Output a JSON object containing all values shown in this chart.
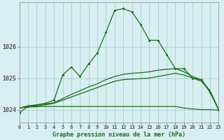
{
  "title": "Graphe pression niveau de la mer (hPa)",
  "background_color": "#d8eef0",
  "grid_color": "#b0d4d4",
  "line_color_main": "#1a6e1a",
  "xlim": [
    0,
    23
  ],
  "ylim": [
    1023.6,
    1027.4
  ],
  "yticks": [
    1024,
    1025,
    1026
  ],
  "xtick_labels": [
    "0",
    "1",
    "2",
    "3",
    "4",
    "5",
    "6",
    "7",
    "8",
    "9",
    "10",
    "11",
    "12",
    "13",
    "14",
    "15",
    "16",
    "17",
    "18",
    "19",
    "20",
    "21",
    "22",
    "23"
  ],
  "series_main": {
    "x": [
      0,
      1,
      2,
      3,
      4,
      5,
      6,
      7,
      8,
      9,
      10,
      11,
      12,
      13,
      14,
      15,
      16,
      17,
      18,
      19,
      20,
      21,
      22,
      23
    ],
    "y": [
      1023.9,
      1024.1,
      1024.15,
      1024.2,
      1024.3,
      1025.1,
      1025.35,
      1025.05,
      1025.45,
      1025.8,
      1026.45,
      1027.15,
      1027.2,
      1027.1,
      1026.7,
      1026.2,
      1026.2,
      1025.75,
      1025.3,
      1025.3,
      1025.0,
      1024.95,
      1024.55,
      1024.0
    ]
  },
  "series_flat": {
    "x": [
      0,
      1,
      2,
      3,
      4,
      5,
      6,
      7,
      8,
      9,
      10,
      11,
      12,
      13,
      14,
      15,
      16,
      17,
      18,
      19,
      20,
      21,
      22,
      23
    ],
    "y": [
      1024.05,
      1024.08,
      1024.09,
      1024.1,
      1024.1,
      1024.1,
      1024.1,
      1024.1,
      1024.1,
      1024.1,
      1024.1,
      1024.1,
      1024.1,
      1024.1,
      1024.1,
      1024.1,
      1024.1,
      1024.1,
      1024.1,
      1024.05,
      1024.02,
      1024.0,
      1024.0,
      1023.98
    ]
  },
  "series_rise1": {
    "x": [
      0,
      1,
      2,
      3,
      4,
      5,
      6,
      7,
      8,
      9,
      10,
      11,
      12,
      13,
      14,
      15,
      16,
      17,
      18,
      19,
      20,
      21,
      22,
      23
    ],
    "y": [
      1024.05,
      1024.1,
      1024.12,
      1024.15,
      1024.2,
      1024.3,
      1024.4,
      1024.5,
      1024.6,
      1024.7,
      1024.8,
      1024.9,
      1024.95,
      1024.97,
      1024.98,
      1025.0,
      1025.05,
      1025.1,
      1025.15,
      1025.1,
      1025.0,
      1024.9,
      1024.6,
      1024.0
    ]
  },
  "series_rise2": {
    "x": [
      0,
      1,
      2,
      3,
      4,
      5,
      6,
      7,
      8,
      9,
      10,
      11,
      12,
      13,
      14,
      15,
      16,
      17,
      18,
      19,
      20,
      21,
      22,
      23
    ],
    "y": [
      1024.05,
      1024.12,
      1024.15,
      1024.18,
      1024.22,
      1024.35,
      1024.48,
      1024.6,
      1024.72,
      1024.82,
      1024.95,
      1025.05,
      1025.12,
      1025.15,
      1025.17,
      1025.2,
      1025.25,
      1025.28,
      1025.3,
      1025.2,
      1025.05,
      1024.95,
      1024.6,
      1024.0
    ]
  }
}
